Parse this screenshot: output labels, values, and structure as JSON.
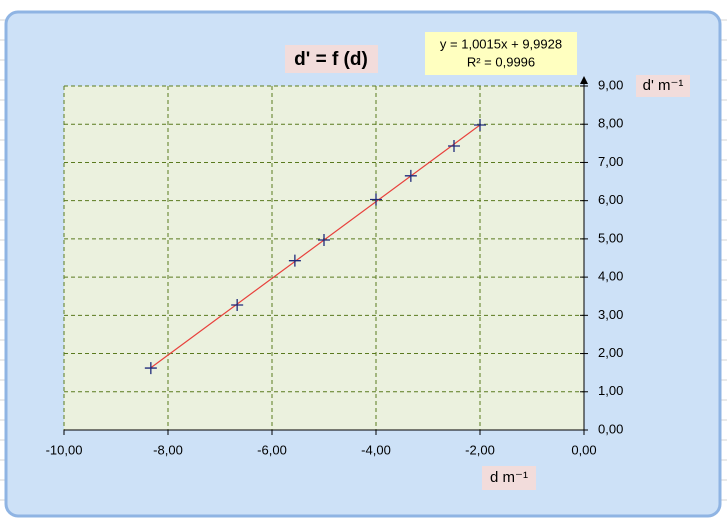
{
  "chart_data": {
    "type": "scatter",
    "title": "d' = f (d)",
    "x_label": "d m⁻¹",
    "y_label": "d' m⁻¹",
    "trendline": {
      "equation": "y = 1,0015x + 9,9928",
      "r_squared": "R² = 0,9996",
      "color": "#e8413c"
    },
    "series": [
      {
        "color": "#1f2a7a",
        "x": [
          -8.33,
          -6.67,
          -5.56,
          -5.0,
          -4.0,
          -3.33,
          -2.5,
          -2.0
        ],
        "values": [
          1.62,
          3.27,
          4.43,
          4.97,
          6.03,
          6.65,
          7.43,
          7.98
        ]
      }
    ],
    "xlim": [
      -10,
      0
    ],
    "xticks": [
      {
        "value": -10,
        "label": "-10,00"
      },
      {
        "value": -8,
        "label": "-8,00"
      },
      {
        "value": -6,
        "label": "-6,00"
      },
      {
        "value": -4,
        "label": "-4,00"
      },
      {
        "value": -2,
        "label": "-2,00"
      },
      {
        "value": 0,
        "label": "0,00"
      }
    ],
    "ylim": [
      0,
      9
    ],
    "yticks": [
      {
        "value": 0,
        "label": "0,00"
      },
      {
        "value": 1,
        "label": "1,00"
      },
      {
        "value": 2,
        "label": "2,00"
      },
      {
        "value": 3,
        "label": "3,00"
      },
      {
        "value": 4,
        "label": "4,00"
      },
      {
        "value": 5,
        "label": "5,00"
      },
      {
        "value": 6,
        "label": "6,00"
      },
      {
        "value": 7,
        "label": "7,00"
      },
      {
        "value": 8,
        "label": "8,00"
      },
      {
        "value": 9,
        "label": "9,00"
      }
    ],
    "grid": true
  }
}
